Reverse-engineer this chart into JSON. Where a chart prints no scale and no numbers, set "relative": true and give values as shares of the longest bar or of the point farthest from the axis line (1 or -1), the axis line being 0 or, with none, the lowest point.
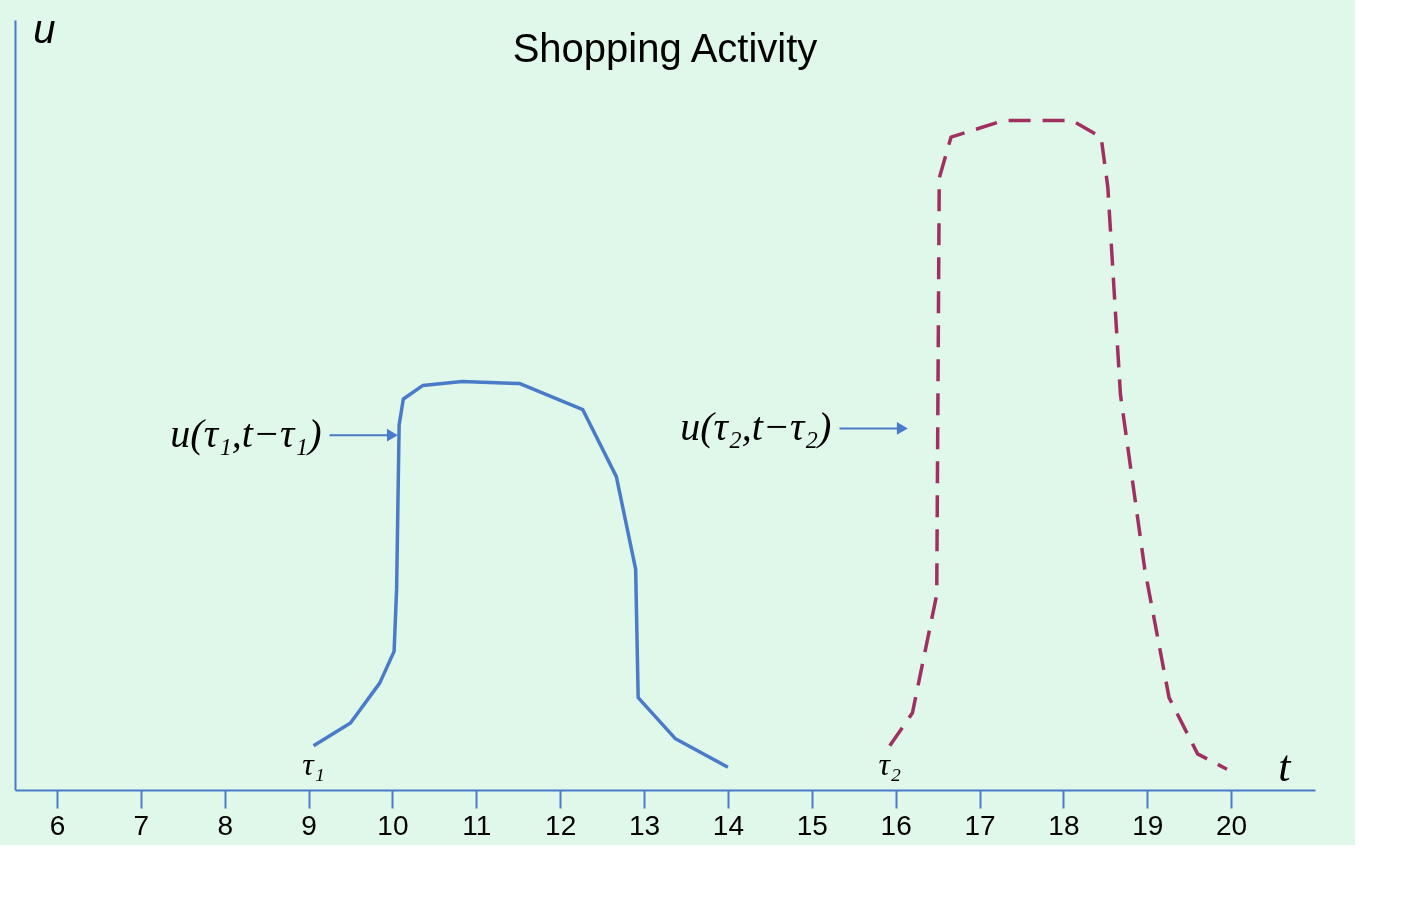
{
  "chart_data": {
    "type": "line",
    "title": "Shopping Activity",
    "xlabel": "t",
    "ylabel": "u",
    "relative": true,
    "xlim": [
      5.5,
      21
    ],
    "xticks": [
      6,
      7,
      8,
      9,
      10,
      11,
      12,
      13,
      14,
      15,
      16,
      17,
      18,
      19,
      20
    ],
    "marker": "none",
    "series": [
      {
        "color": "#4a7bc8",
        "line_style": "solid",
        "x": [
          9.06,
          9.5,
          9.85,
          10.02,
          10.05,
          10.08,
          10.13,
          10.36,
          10.83,
          11.52,
          12.27,
          12.67,
          12.9,
          12.93,
          13.37,
          14.0
        ],
        "values": [
          0.066,
          0.1,
          0.16,
          0.207,
          0.3,
          0.545,
          0.584,
          0.604,
          0.61,
          0.607,
          0.568,
          0.468,
          0.33,
          0.138,
          0.077,
          0.034
        ]
      },
      {
        "color": "#a03060",
        "line_style": "dashed",
        "x": [
          15.93,
          16.2,
          16.49,
          16.52,
          16.66,
          17.29,
          18.1,
          18.45,
          18.53,
          18.68,
          18.97,
          19.26,
          19.6,
          19.95
        ],
        "values": [
          0.066,
          0.115,
          0.292,
          0.914,
          0.975,
          1,
          1,
          0.975,
          0.9,
          0.591,
          0.33,
          0.138,
          0.054,
          0.031
        ]
      }
    ],
    "annotations": [
      {
        "text": "u(τ₁,t−τ₁)",
        "x": 10.0,
        "y": 0.53
      },
      {
        "text": "u(τ₂,t−τ₂)",
        "x": 16.08,
        "y": 0.54
      },
      {
        "text": "τ₁",
        "x": 9.06,
        "y": 0.066
      },
      {
        "text": "τ₂",
        "x": 15.93,
        "y": 0.066
      }
    ]
  }
}
